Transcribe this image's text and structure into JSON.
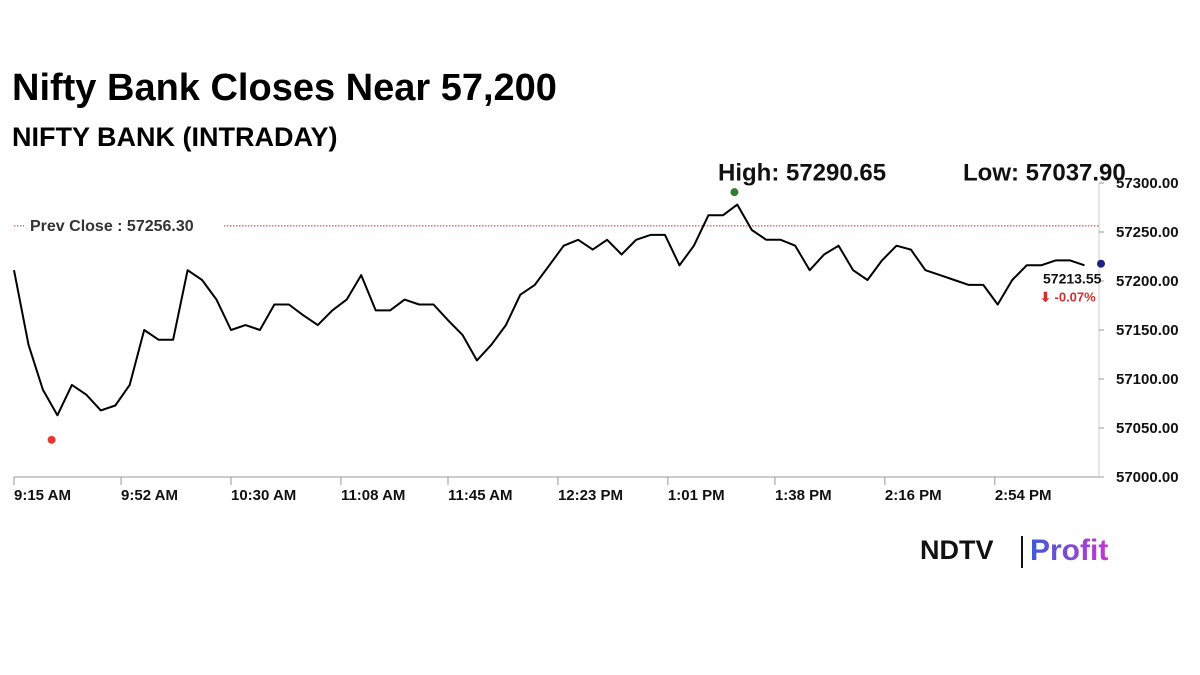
{
  "chart_data": {
    "type": "line",
    "title": "Nifty Bank Closes Near 57,200",
    "subtitle": "NIFTY BANK (INTRADAY)",
    "x": [
      "9:15 AM",
      "9:20 AM",
      "9:25 AM",
      "9:30 AM",
      "9:35 AM",
      "9:40 AM",
      "9:45 AM",
      "9:50 AM",
      "9:55 AM",
      "10:00 AM",
      "10:05 AM",
      "10:10 AM",
      "10:15 AM",
      "10:20 AM",
      "10:25 AM",
      "10:30 AM",
      "10:35 AM",
      "10:40 AM",
      "10:45 AM",
      "10:50 AM",
      "10:55 AM",
      "11:00 AM",
      "11:05 AM",
      "11:10 AM",
      "11:15 AM",
      "11:20 AM",
      "11:25 AM",
      "11:30 AM",
      "11:35 AM",
      "11:40 AM",
      "11:45 AM",
      "11:50 AM",
      "11:55 AM",
      "12:00 PM",
      "12:05 PM",
      "12:10 PM",
      "12:15 PM",
      "12:20 PM",
      "12:25 PM",
      "12:30 PM",
      "12:35 PM",
      "12:40 PM",
      "12:45 PM",
      "12:50 PM",
      "12:55 PM",
      "1:00 PM",
      "1:05 PM",
      "1:10 PM",
      "1:15 PM",
      "1:20 PM",
      "1:25 PM",
      "1:30 PM",
      "1:35 PM",
      "1:40 PM",
      "1:45 PM",
      "1:50 PM",
      "1:55 PM",
      "2:00 PM",
      "2:05 PM",
      "2:10 PM",
      "2:15 PM",
      "2:20 PM",
      "2:25 PM",
      "2:30 PM",
      "2:35 PM",
      "2:40 PM",
      "2:45 PM",
      "2:50 PM",
      "2:55 PM",
      "3:00 PM",
      "3:05 PM",
      "3:10 PM",
      "3:15 PM",
      "3:20 PM",
      "3:25 PM"
    ],
    "values": [
      57211,
      57135,
      57089,
      57063,
      57094,
      57084,
      57068,
      57073,
      57094,
      57150,
      57140,
      57140,
      57211,
      57201,
      57181,
      57150,
      57155,
      57150,
      57176,
      57176,
      57165,
      57155,
      57170,
      57181,
      57206,
      57170,
      57170,
      57181,
      57176,
      57176,
      57160,
      57145,
      57119,
      57135,
      57155,
      57186,
      57196,
      57216,
      57236,
      57242,
      57232,
      57242,
      57227,
      57242,
      57247,
      57247,
      57216,
      57236,
      57267,
      57267,
      57278,
      57252,
      57242,
      57242,
      57236,
      57211,
      57227,
      57236,
      57211,
      57201,
      57221,
      57236,
      57232,
      57211,
      57206,
      57201,
      57196,
      57196,
      57176,
      57201,
      57216,
      57216,
      57221,
      57221,
      57216
    ],
    "color": "#000000",
    "xlim": [
      "9:15 AM",
      "3:30 PM"
    ],
    "xticks": [
      "9:15 AM",
      "9:52 AM",
      "10:30 AM",
      "11:08 AM",
      "11:45 AM",
      "12:23 PM",
      "1:01 PM",
      "1:38 PM",
      "2:16 PM",
      "2:54 PM"
    ],
    "ylim": [
      57000,
      57300
    ],
    "yticks": [
      {
        "value": 57000,
        "label": "57000.00"
      },
      {
        "value": 57050,
        "label": "57050.00"
      },
      {
        "value": 57100,
        "label": "57100.00"
      },
      {
        "value": 57150,
        "label": "57150.00"
      },
      {
        "value": 57200,
        "label": "57200.00"
      },
      {
        "value": 57250,
        "label": "57250.00"
      },
      {
        "value": 57300,
        "label": "57300.00"
      }
    ],
    "annotations": {
      "high": {
        "label": "High: 57290.65",
        "value": 57290.65,
        "time": "1:24 PM",
        "color": "#2e7d32"
      },
      "low": {
        "label": "Low: 57037.90",
        "value": 57037.9,
        "time": "9:28 AM",
        "color": "#e53935"
      },
      "prev_close": {
        "label": "Prev Close : 57256.30",
        "value": 57256.3,
        "color": "#d32f2f"
      },
      "last": {
        "label": "57213.55",
        "value": 57213.55,
        "color": "#1a237e"
      },
      "change": {
        "label": "⬇ -0.07%",
        "value": -0.07,
        "color": "#d32f2f"
      }
    }
  },
  "brand": {
    "left": "NDTV",
    "right": "Profit"
  }
}
